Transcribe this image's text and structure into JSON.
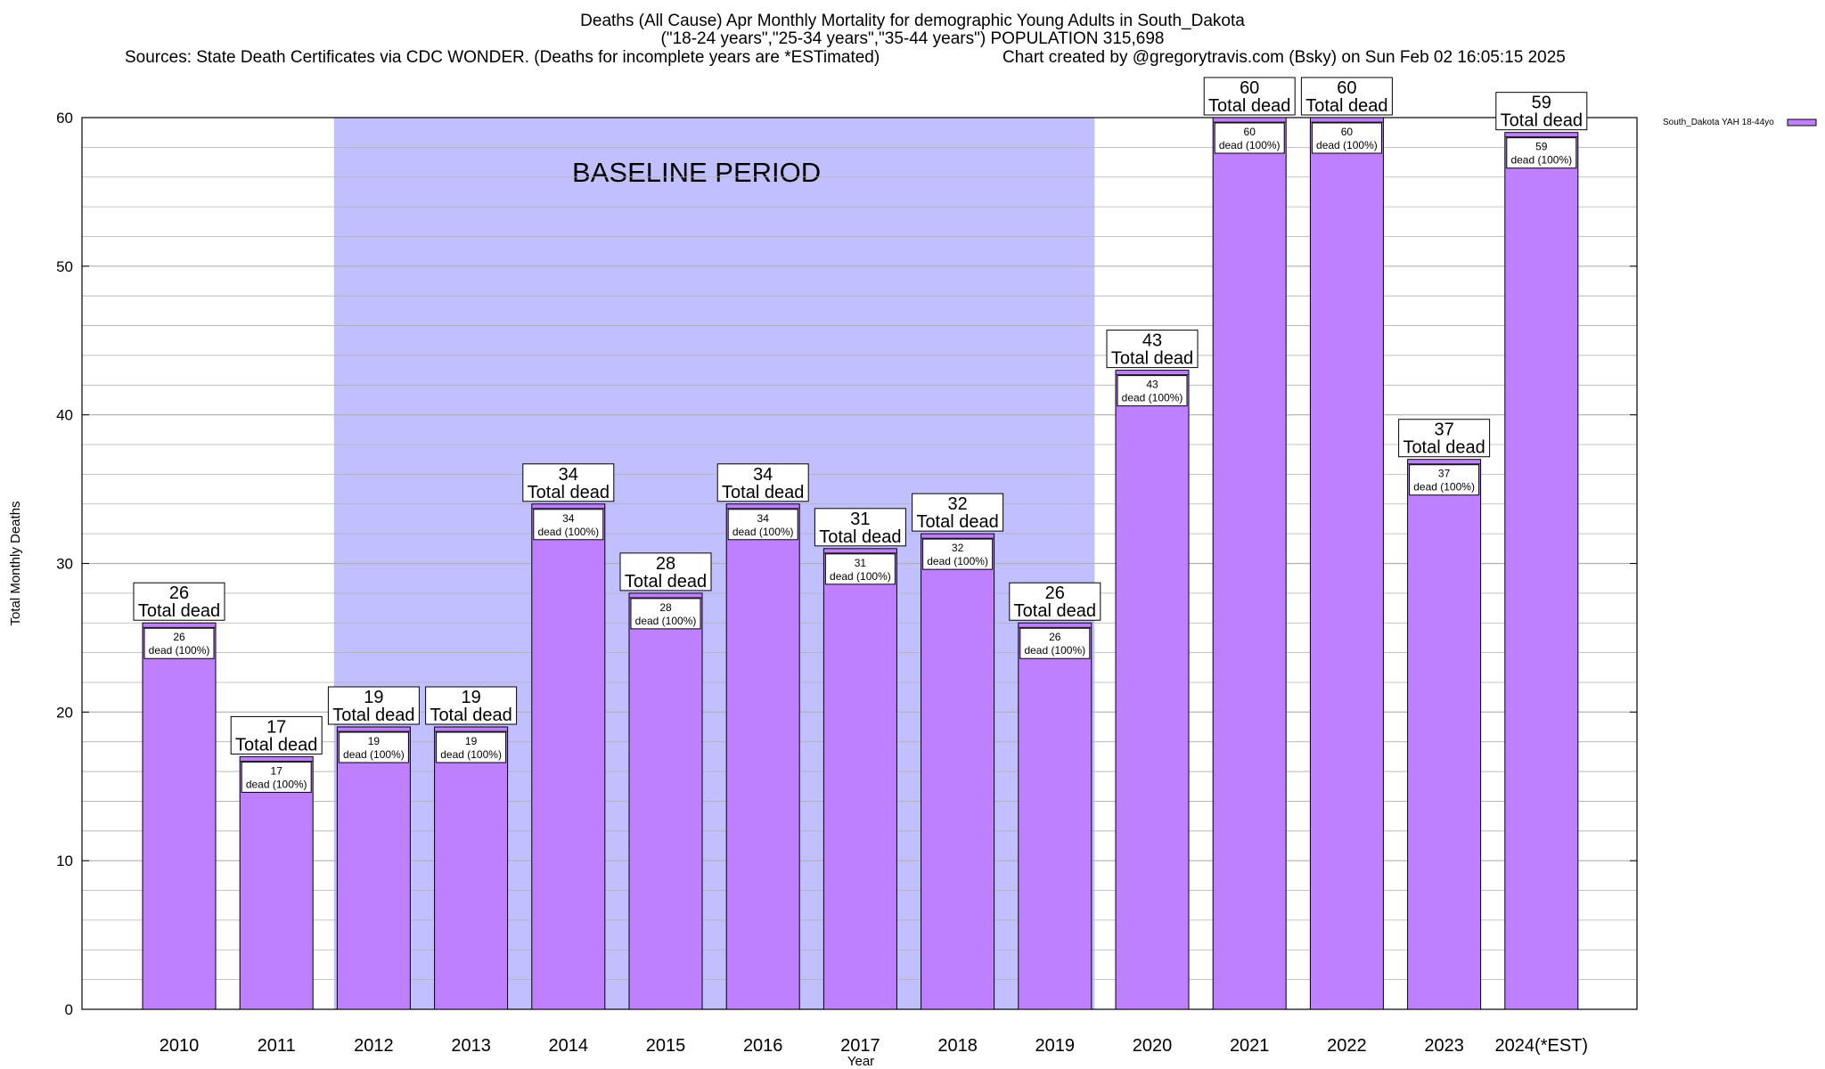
{
  "header": {
    "title": "Deaths (All Cause) Apr Monthly Mortality for demographic Young Adults in South_Dakota",
    "subtitle": "(\"18-24 years\",\"25-34 years\",\"35-44 years\") POPULATION 315,698",
    "sources": "Sources: State Death Certificates via CDC WONDER. (Deaths for incomplete years are *ESTimated)",
    "credit": "Chart created by @gregorytravis.com (Bsky) on Sun Feb 02 16:05:15 2025"
  },
  "chart_data": {
    "type": "bar",
    "categories": [
      "2010",
      "2011",
      "2012",
      "2013",
      "2014",
      "2015",
      "2016",
      "2017",
      "2018",
      "2019",
      "2020",
      "2021",
      "2022",
      "2023",
      "2024(*EST)"
    ],
    "series": [
      {
        "name": "South_Dakota YAH 18-44yo",
        "values": [
          26,
          17,
          19,
          19,
          34,
          28,
          34,
          31,
          32,
          26,
          43,
          60,
          60,
          37,
          59
        ]
      }
    ],
    "top_label_suffix": "Total dead",
    "inner_label_suffix": "dead (100%)",
    "xlabel": "Year",
    "ylabel": "Total Monthly Deaths",
    "ylim": [
      0,
      60
    ],
    "yticks": [
      0,
      10,
      20,
      30,
      40,
      50,
      60
    ],
    "grid": true,
    "minor_grid_step": 2,
    "legend_position": "top-right",
    "baseline": {
      "label": "BASELINE PERIOD",
      "from": "2012",
      "to": "2019"
    },
    "colors": {
      "bar_fill": "#bf80ff",
      "baseline_fill": "#c0c0ff",
      "grid": "#b0b0b0",
      "axis": "#000000"
    }
  }
}
